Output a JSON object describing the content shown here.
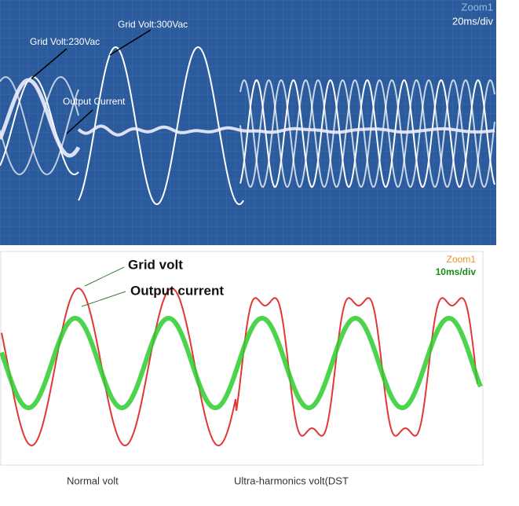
{
  "top_panel": {
    "zoom": "Zoom1",
    "timebase": "20ms/div",
    "annotations": [
      "Grid Volt:230Vac",
      "Grid Volt:300Vac",
      "Output Current"
    ]
  },
  "bottom_panel": {
    "zoom": "Zoom1",
    "timebase": "10ms/div",
    "annotations": [
      "Grid volt",
      "Output current"
    ]
  },
  "captions": [
    "Normal volt",
    "Ultra-harmonics volt(DST"
  ]
}
